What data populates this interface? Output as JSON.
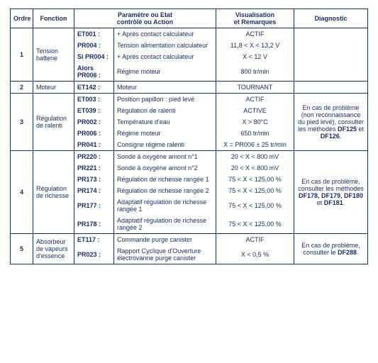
{
  "headers": {
    "ordre": "Ordre",
    "fonction": "Fonction",
    "param": "Paramètre ou Etat\ncontrôlé ou Action",
    "visual": "Visualisation\net Remarques",
    "diag": "Diagnostic"
  },
  "rows": {
    "r1": {
      "ordre": "1",
      "fonction": "Tension batterie",
      "l1": {
        "code": "ET001 :",
        "desc": "+ Après contact calculateur",
        "vis": "ACTIF"
      },
      "l2": {
        "code": "PR004 :",
        "desc": "Tension alimentation calculateur",
        "vis": "11,8 < X < 13,2 V"
      },
      "l3": {
        "code": "Si PR004 :",
        "desc": "+ Après contact calculateur",
        "vis": "X < 12 V"
      },
      "l4": {
        "code": "Alors PR006 :",
        "desc": "Régime moteur",
        "vis": "800 tr/min"
      }
    },
    "r2": {
      "ordre": "2",
      "fonction": "Moteur",
      "l1": {
        "code": "ET142 :",
        "desc": "Moteur",
        "vis": "TOURNANT"
      }
    },
    "r3": {
      "ordre": "3",
      "fonction": "Régulation de ralenti",
      "diag_a": "En cas de problème (non reconnaissance du pied levé), consulter les méthodes ",
      "diag_b": "DF125",
      "diag_c": " et ",
      "diag_d": "DF126",
      "diag_e": ".",
      "l1": {
        "code": "ET003 :",
        "desc": "Position papillon : pied levé",
        "vis": "ACTIF"
      },
      "l2": {
        "code": "ET039 :",
        "desc": "Régulation de ralenti",
        "vis": "ACTIVE"
      },
      "l3": {
        "code": "PR002 :",
        "desc": "Température d'eau",
        "vis": "X > 80°C"
      },
      "l4": {
        "code": "PR006 :",
        "desc": "Régime moteur",
        "vis": "650 tr/min"
      },
      "l5": {
        "code": "PR041 :",
        "desc": "Consigne régime ralenti",
        "vis": "X = PR006 ± 25 tr/min"
      }
    },
    "r4": {
      "ordre": "4",
      "fonction": "Régulation de richesse",
      "diag_a": "En cas de problème, consulter les méthodes ",
      "diag_b": "DF178, DF179, DF180",
      "diag_c": " et ",
      "diag_d": "DF181",
      "diag_e": ".",
      "l1": {
        "code": "PR220 :",
        "desc": "Sonde à oxygène amont n°1",
        "vis": "20 < X < 800 mV"
      },
      "l2": {
        "code": "PR221 :",
        "desc": "Sonde à oxygène amont n°2",
        "vis": "20 < X < 800 mV"
      },
      "l3": {
        "code": "PR173 :",
        "desc": "Régulation de richesse rangée 1",
        "vis": "75 < X < 125,00 %"
      },
      "l4": {
        "code": "PR174 :",
        "desc": "Régulation de richesse rangée 2",
        "vis": "75 < X < 125,00 %"
      },
      "l5": {
        "code": "PR177 :",
        "desc": "Adaptatif régulation de richesse rangée 1",
        "vis": "75 < X < 125,00 %"
      },
      "l6": {
        "code": "PR178 :",
        "desc": "Adaptatif régulation de richesse rangée 2",
        "vis": "75 < X < 125,00 %"
      }
    },
    "r5": {
      "ordre": "5",
      "fonction": "Absorbeur de vapeurs d'essence",
      "diag_a": "En cas de problème, consulter le ",
      "diag_b": "DF288",
      "diag_c": ".",
      "l1": {
        "code": "ET117 :",
        "desc": "Commande purge canister",
        "vis": "ACTIF"
      },
      "l2": {
        "code": "PR023 :",
        "desc": "Rapport Cyclique d'Ouverture électrovanne purge canister",
        "vis": "X < 0,5 %"
      }
    }
  }
}
